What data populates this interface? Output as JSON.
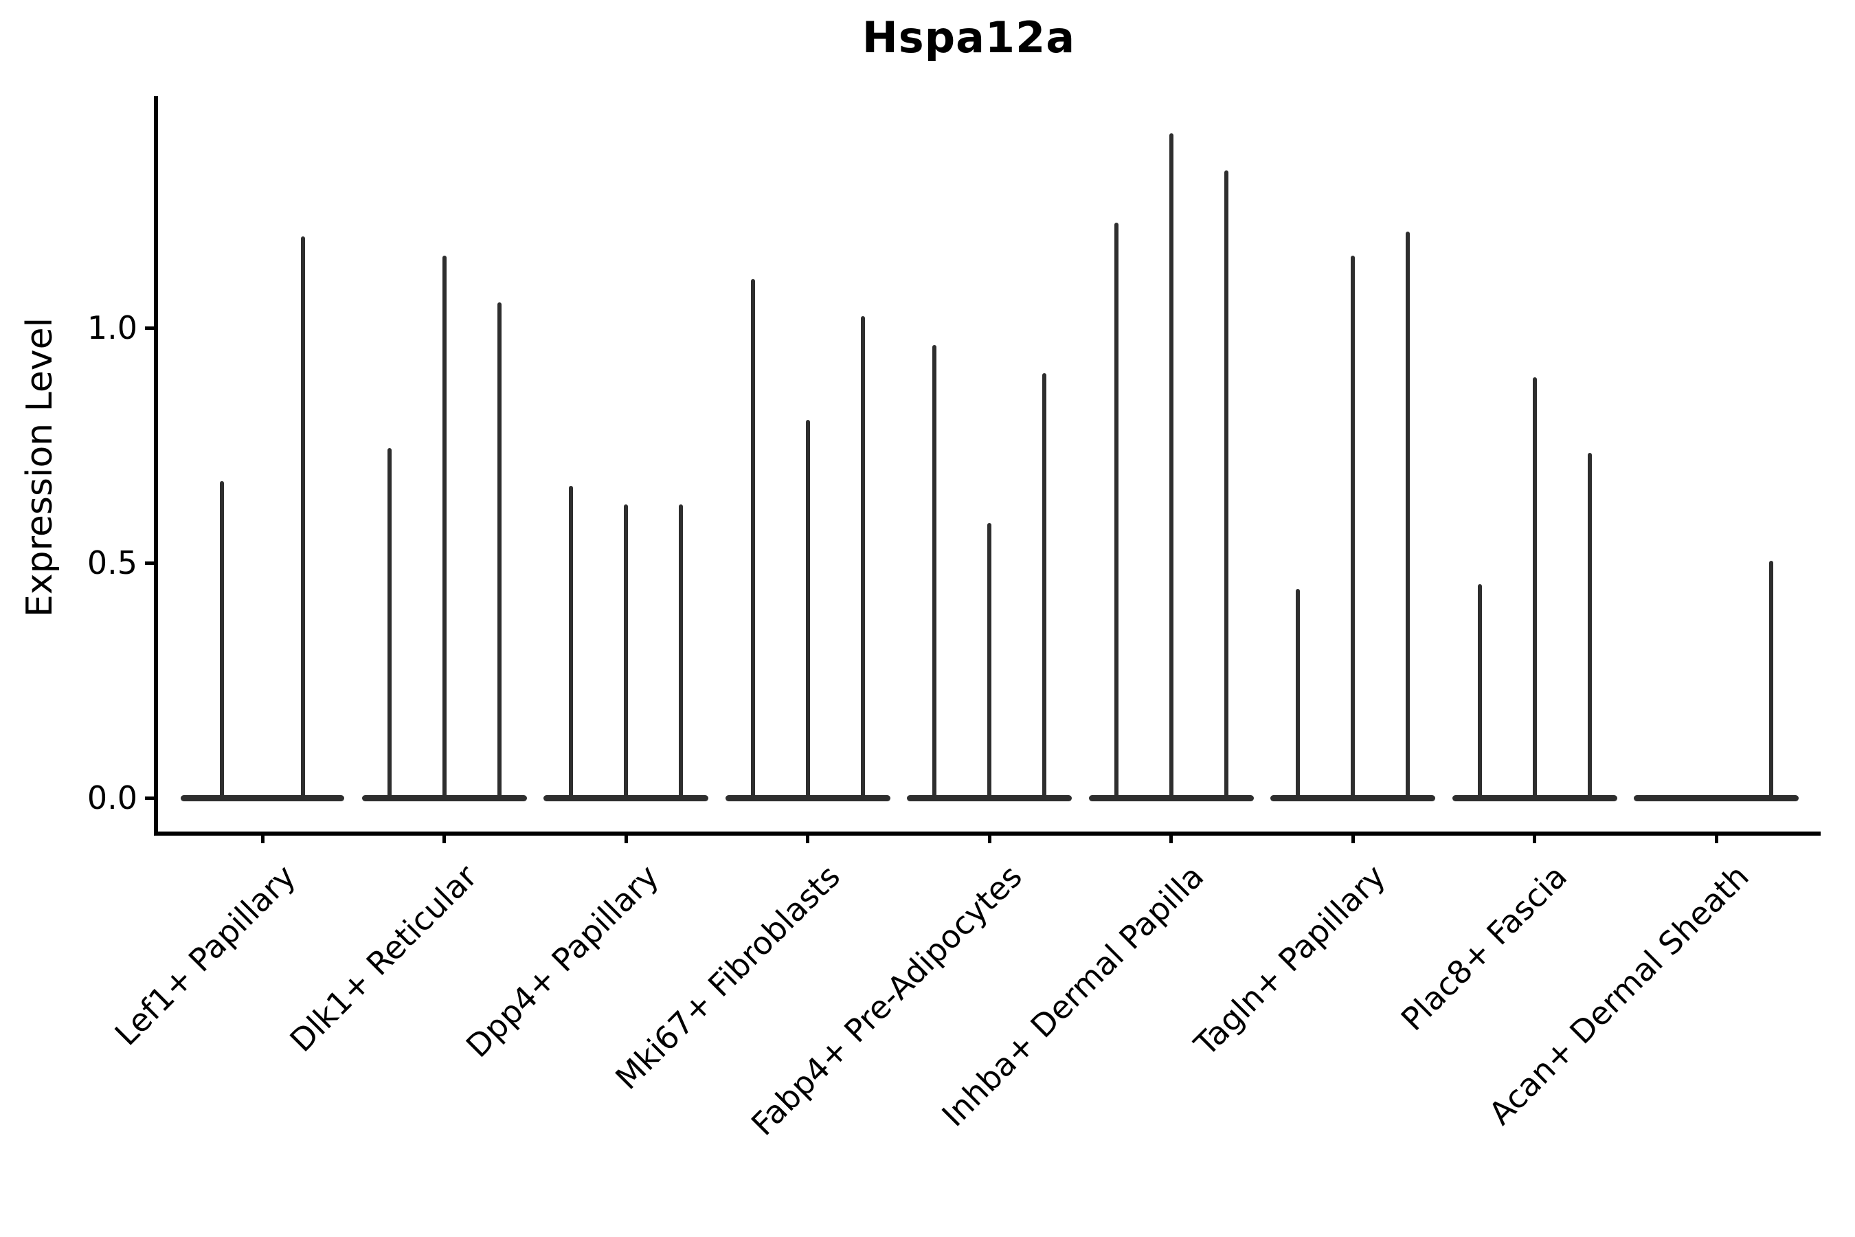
{
  "title": "Hspa12a",
  "ylabel": "Expression Level",
  "colors": {
    "violin": "#2e2e2e",
    "axis": "#000000",
    "background": "#ffffff"
  },
  "chart_data": {
    "type": "violin",
    "title": "Hspa12a",
    "xlabel": "",
    "ylabel": "Expression Level",
    "ylim": [
      -0.07,
      1.49
    ],
    "grid": false,
    "legend_position": "none",
    "ytick_values": [
      0.0,
      0.5,
      1.0
    ],
    "ytick_labels": [
      "0.0",
      "0.5",
      "1.0"
    ],
    "categories": [
      "Lef1+ Papillary",
      "Dlk1+ Reticular",
      "Dpp4+ Papillary",
      "Mki67+ Fibroblasts",
      "Fabp4+ Pre-Adipocytes",
      "Inhba+ Dermal Papilla",
      "Tagln+ Papillary",
      "Plac8+ Fascia",
      "Acan+ Dermal Sheath"
    ],
    "groups": [
      {
        "category": "Lef1+ Papillary",
        "peaks": [
          0.68,
          1.2
        ]
      },
      {
        "category": "Dlk1+ Reticular",
        "peaks": [
          0.75,
          1.16,
          1.06
        ]
      },
      {
        "category": "Dpp4+ Papillary",
        "peaks": [
          0.67,
          0.63,
          0.63
        ]
      },
      {
        "category": "Mki67+ Fibroblasts",
        "peaks": [
          1.11,
          0.81,
          1.03
        ]
      },
      {
        "category": "Fabp4+ Pre-Adipocytes",
        "peaks": [
          0.97,
          0.59,
          0.91
        ]
      },
      {
        "category": "Inhba+ Dermal Papilla",
        "peaks": [
          1.23,
          1.42,
          1.34
        ]
      },
      {
        "category": "Tagln+ Papillary",
        "peaks": [
          0.45,
          1.16,
          1.21
        ]
      },
      {
        "category": "Plac8+ Fascia",
        "peaks": [
          0.46,
          0.9,
          0.74
        ]
      },
      {
        "category": "Acan+ Dermal Sheath",
        "peaks": [
          0.0,
          0.0,
          0.51
        ]
      }
    ],
    "description": "Violin plot of Hspa12a expression; each category holds narrow spike-like violins (one per sample) rising from a flat baseline at 0."
  }
}
